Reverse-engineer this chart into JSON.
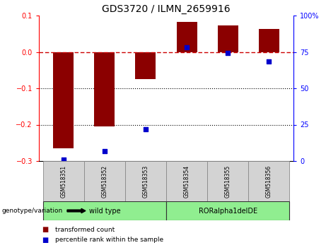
{
  "title": "GDS3720 / ILMN_2659916",
  "samples": [
    "GSM518351",
    "GSM518352",
    "GSM518353",
    "GSM518354",
    "GSM518355",
    "GSM518356"
  ],
  "bar_values": [
    -0.265,
    -0.205,
    -0.075,
    0.083,
    0.073,
    0.063
  ],
  "dot_values_raw": [
    -0.297,
    -0.273,
    -0.213,
    0.013,
    -0.003,
    -0.027
  ],
  "ylim_left": [
    -0.3,
    0.1
  ],
  "ylim_right": [
    0,
    100
  ],
  "right_ticks": [
    0,
    25,
    50,
    75,
    100
  ],
  "right_tick_labels": [
    "0",
    "25",
    "50",
    "75",
    "100%"
  ],
  "left_ticks": [
    -0.3,
    -0.2,
    -0.1,
    0.0,
    0.1
  ],
  "bar_color": "#8B0000",
  "dot_color": "#0000CC",
  "zero_line_color": "#CC0000",
  "dotted_lines": [
    -0.1,
    -0.2
  ],
  "bar_width": 0.5,
  "legend_items": [
    "transformed count",
    "percentile rank within the sample"
  ],
  "group1_label": "wild type",
  "group2_label": "RORalpha1delDE",
  "group_color": "#90EE90",
  "genotype_label": "genotype/variation"
}
